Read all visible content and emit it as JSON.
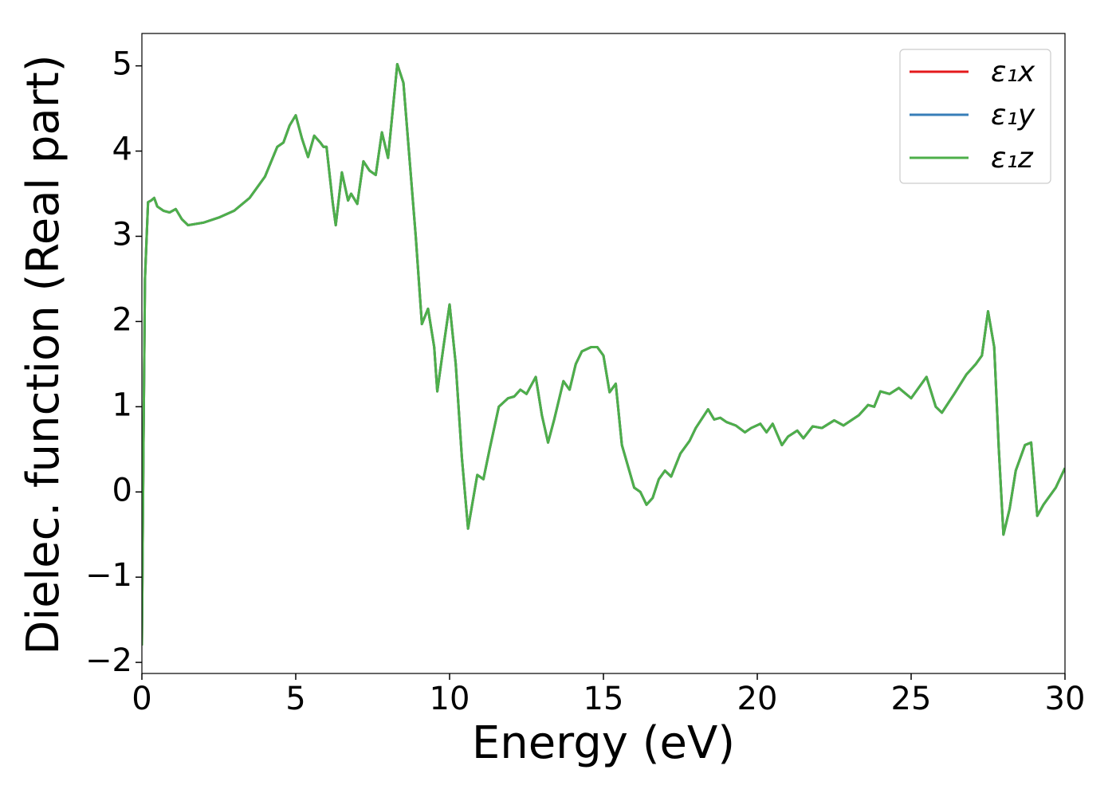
{
  "chart_data": {
    "type": "line",
    "xlabel": "Energy (eV)",
    "ylabel": "Dielec. function (Real part)",
    "x": [
      0,
      0.05,
      0.1,
      0.2,
      0.3,
      0.4,
      0.5,
      0.7,
      0.9,
      1.1,
      1.3,
      1.5,
      2,
      2.5,
      3,
      3.5,
      4,
      4.4,
      4.6,
      4.8,
      5.0,
      5.2,
      5.4,
      5.6,
      5.8,
      5.9,
      6.0,
      6.2,
      6.3,
      6.5,
      6.7,
      6.8,
      7.0,
      7.2,
      7.4,
      7.6,
      7.8,
      8.0,
      8.3,
      8.5,
      8.7,
      8.9,
      9.1,
      9.3,
      9.5,
      9.6,
      9.8,
      10.0,
      10.2,
      10.4,
      10.6,
      10.9,
      11.1,
      11.3,
      11.6,
      11.9,
      12.1,
      12.3,
      12.5,
      12.8,
      13.0,
      13.2,
      13.4,
      13.7,
      13.9,
      14.1,
      14.3,
      14.6,
      14.8,
      15.0,
      15.2,
      15.4,
      15.6,
      15.8,
      16.0,
      16.2,
      16.4,
      16.6,
      16.8,
      17.0,
      17.2,
      17.5,
      17.8,
      18.0,
      18.4,
      18.6,
      18.8,
      19.0,
      19.3,
      19.6,
      19.8,
      20.1,
      20.3,
      20.5,
      20.8,
      21.0,
      21.3,
      21.5,
      21.8,
      22.1,
      22.5,
      22.8,
      23.3,
      23.6,
      23.8,
      24.0,
      24.3,
      24.6,
      25.0,
      25.5,
      25.8,
      26.0,
      26.4,
      26.8,
      27.1,
      27.3,
      27.5,
      27.7,
      27.85,
      28.0,
      28.2,
      28.4,
      28.7,
      28.9,
      29.1,
      29.3,
      29.7,
      30
    ],
    "series": [
      {
        "name": "ε₁x",
        "color": "#e41a1c",
        "values": [
          -1.8,
          0.5,
          2.5,
          3.4,
          3.42,
          3.45,
          3.35,
          3.3,
          3.28,
          3.32,
          3.2,
          3.13,
          3.16,
          3.22,
          3.3,
          3.45,
          3.7,
          4.05,
          4.1,
          4.3,
          4.42,
          4.15,
          3.93,
          4.18,
          4.1,
          4.05,
          4.05,
          3.4,
          3.13,
          3.75,
          3.42,
          3.5,
          3.38,
          3.88,
          3.77,
          3.72,
          4.22,
          3.92,
          5.02,
          4.8,
          3.9,
          3.0,
          1.97,
          2.15,
          1.7,
          1.18,
          1.7,
          2.2,
          1.5,
          0.4,
          -0.43,
          0.2,
          0.15,
          0.5,
          1.0,
          1.1,
          1.12,
          1.2,
          1.15,
          1.35,
          0.9,
          0.58,
          0.85,
          1.3,
          1.2,
          1.5,
          1.65,
          1.7,
          1.7,
          1.6,
          1.17,
          1.27,
          0.55,
          0.3,
          0.05,
          0.0,
          -0.15,
          -0.07,
          0.15,
          0.25,
          0.18,
          0.45,
          0.6,
          0.75,
          0.97,
          0.85,
          0.87,
          0.82,
          0.78,
          0.7,
          0.75,
          0.8,
          0.7,
          0.8,
          0.55,
          0.65,
          0.72,
          0.63,
          0.77,
          0.75,
          0.84,
          0.78,
          0.9,
          1.02,
          1.0,
          1.18,
          1.15,
          1.22,
          1.1,
          1.35,
          1.0,
          0.93,
          1.15,
          1.38,
          1.5,
          1.6,
          2.12,
          1.7,
          0.5,
          -0.5,
          -0.2,
          0.25,
          0.55,
          0.58,
          -0.28,
          -0.15,
          0.05,
          0.28
        ]
      },
      {
        "name": "ε₁y",
        "color": "#377eb8",
        "values": [
          -1.8,
          0.5,
          2.5,
          3.4,
          3.42,
          3.45,
          3.35,
          3.3,
          3.28,
          3.32,
          3.2,
          3.13,
          3.16,
          3.22,
          3.3,
          3.45,
          3.7,
          4.05,
          4.1,
          4.3,
          4.42,
          4.15,
          3.93,
          4.18,
          4.1,
          4.05,
          4.05,
          3.4,
          3.13,
          3.75,
          3.42,
          3.5,
          3.38,
          3.88,
          3.77,
          3.72,
          4.22,
          3.92,
          5.02,
          4.8,
          3.9,
          3.0,
          1.97,
          2.15,
          1.7,
          1.18,
          1.7,
          2.2,
          1.5,
          0.4,
          -0.43,
          0.2,
          0.15,
          0.5,
          1.0,
          1.1,
          1.12,
          1.2,
          1.15,
          1.35,
          0.9,
          0.58,
          0.85,
          1.3,
          1.2,
          1.5,
          1.65,
          1.7,
          1.7,
          1.6,
          1.17,
          1.27,
          0.55,
          0.3,
          0.05,
          0.0,
          -0.15,
          -0.07,
          0.15,
          0.25,
          0.18,
          0.45,
          0.6,
          0.75,
          0.97,
          0.85,
          0.87,
          0.82,
          0.78,
          0.7,
          0.75,
          0.8,
          0.7,
          0.8,
          0.55,
          0.65,
          0.72,
          0.63,
          0.77,
          0.75,
          0.84,
          0.78,
          0.9,
          1.02,
          1.0,
          1.18,
          1.15,
          1.22,
          1.1,
          1.35,
          1.0,
          0.93,
          1.15,
          1.38,
          1.5,
          1.6,
          2.12,
          1.7,
          0.5,
          -0.5,
          -0.2,
          0.25,
          0.55,
          0.58,
          -0.28,
          -0.15,
          0.05,
          0.28
        ]
      },
      {
        "name": "ε₁z",
        "color": "#4daf4a",
        "values": [
          -1.8,
          0.5,
          2.5,
          3.4,
          3.42,
          3.45,
          3.35,
          3.3,
          3.28,
          3.32,
          3.2,
          3.13,
          3.16,
          3.22,
          3.3,
          3.45,
          3.7,
          4.05,
          4.1,
          4.3,
          4.42,
          4.15,
          3.93,
          4.18,
          4.1,
          4.05,
          4.05,
          3.4,
          3.13,
          3.75,
          3.42,
          3.5,
          3.38,
          3.88,
          3.77,
          3.72,
          4.22,
          3.92,
          5.02,
          4.8,
          3.9,
          3.0,
          1.97,
          2.15,
          1.7,
          1.18,
          1.7,
          2.2,
          1.5,
          0.4,
          -0.43,
          0.2,
          0.15,
          0.5,
          1.0,
          1.1,
          1.12,
          1.2,
          1.15,
          1.35,
          0.9,
          0.58,
          0.85,
          1.3,
          1.2,
          1.5,
          1.65,
          1.7,
          1.7,
          1.6,
          1.17,
          1.27,
          0.55,
          0.3,
          0.05,
          0.0,
          -0.15,
          -0.07,
          0.15,
          0.25,
          0.18,
          0.45,
          0.6,
          0.75,
          0.97,
          0.85,
          0.87,
          0.82,
          0.78,
          0.7,
          0.75,
          0.8,
          0.7,
          0.8,
          0.55,
          0.65,
          0.72,
          0.63,
          0.77,
          0.75,
          0.84,
          0.78,
          0.9,
          1.02,
          1.0,
          1.18,
          1.15,
          1.22,
          1.1,
          1.35,
          1.0,
          0.93,
          1.15,
          1.38,
          1.5,
          1.6,
          2.12,
          1.7,
          0.5,
          -0.5,
          -0.2,
          0.25,
          0.55,
          0.58,
          -0.28,
          -0.15,
          0.05,
          0.28
        ]
      }
    ],
    "xlim": [
      0,
      30
    ],
    "xticks": [
      0,
      5,
      10,
      15,
      20,
      25,
      30
    ],
    "ylim": [
      -2.13,
      5.38
    ],
    "yticks": [
      {
        "value": -2,
        "label": "−2"
      },
      {
        "value": -1,
        "label": "−1"
      },
      0,
      1,
      2,
      3,
      4,
      5
    ],
    "legend": "upper right",
    "grid": false
  }
}
